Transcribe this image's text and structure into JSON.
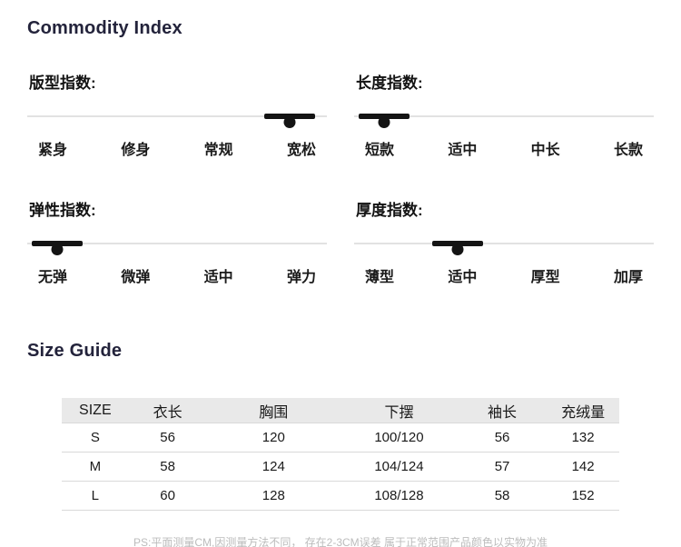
{
  "page": {
    "title": "Commodity Index",
    "size_guide_title": "Size Guide"
  },
  "indices": [
    {
      "id": "fit",
      "title": "版型指数:",
      "options": [
        "紧身",
        "修身",
        "常规",
        "宽松"
      ],
      "selected": "宽松",
      "selected_index": 3
    },
    {
      "id": "length",
      "title": "长度指数:",
      "options": [
        "短款",
        "适中",
        "中长",
        "长款"
      ],
      "selected": "短款",
      "selected_index": 0
    },
    {
      "id": "elasticity",
      "title": "弹性指数:",
      "options": [
        "无弹",
        "微弹",
        "适中",
        "弹力"
      ],
      "selected": "无弹",
      "selected_index": 0
    },
    {
      "id": "thickness",
      "title": "厚度指数:",
      "options": [
        "薄型",
        "适中",
        "厚型",
        "加厚"
      ],
      "selected": "适中",
      "selected_index": 1
    }
  ],
  "size_table": {
    "headers": [
      "SIZE",
      "衣长",
      "胸围",
      "下摆",
      "袖长",
      "充绒量"
    ],
    "rows": [
      [
        "S",
        "56",
        "120",
        "100/120",
        "56",
        "132"
      ],
      [
        "M",
        "58",
        "124",
        "104/124",
        "57",
        "142"
      ],
      [
        "L",
        "60",
        "128",
        "108/128",
        "58",
        "152"
      ]
    ]
  },
  "footnote": "PS:平面测量CM,因测量方法不同， 存在2-3CM误差 属于正常范围产品颜色以实物为准",
  "colors": {
    "heading": "#23233b",
    "text": "#1a1a1a",
    "track": "#e2e2e2",
    "marker": "#141414",
    "table_header_bg": "#e9e9e9",
    "row_divider": "#d9d9d9",
    "footnote": "#bcbcbc"
  }
}
